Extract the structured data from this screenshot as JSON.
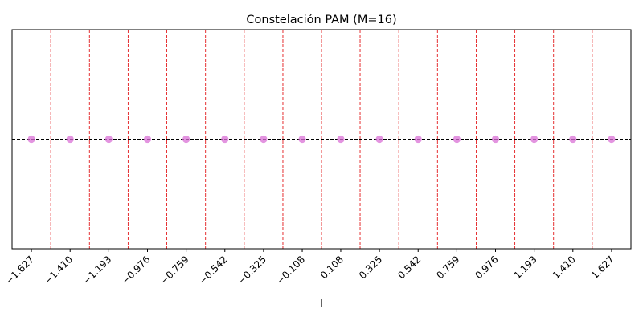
{
  "chart_data": {
    "type": "scatter",
    "title": "Constelación PAM (M=16)",
    "xlabel": "I",
    "ylabel": "",
    "xlim": [
      -1.7355,
      1.7355
    ],
    "ylim": [
      -1,
      1
    ],
    "grid": false,
    "legend": "none",
    "x": [
      -1.627,
      -1.41,
      -1.193,
      -0.976,
      -0.759,
      -0.542,
      -0.325,
      -0.108,
      0.108,
      0.325,
      0.542,
      0.759,
      0.976,
      1.193,
      1.41,
      1.627
    ],
    "y": [
      0,
      0,
      0,
      0,
      0,
      0,
      0,
      0,
      0,
      0,
      0,
      0,
      0,
      0,
      0,
      0
    ],
    "xtick_values": [
      -1.627,
      -1.41,
      -1.193,
      -0.976,
      -0.759,
      -0.542,
      -0.325,
      -0.108,
      0.108,
      0.325,
      0.542,
      0.759,
      0.976,
      1.193,
      1.41,
      1.627
    ],
    "xtick_labels": [
      "−1.627",
      "−1.410",
      "−1.193",
      "−0.976",
      "−0.759",
      "−0.542",
      "−0.325",
      "−0.108",
      "0.108",
      "0.325",
      "0.542",
      "0.759",
      "0.976",
      "1.193",
      "1.410",
      "1.627"
    ],
    "decision_boundaries": [
      -1.5185,
      -1.3015,
      -1.0845,
      -0.8675,
      -0.6505,
      -0.4335,
      -0.2165,
      0.0,
      0.2165,
      0.4335,
      0.6505,
      0.8675,
      1.0845,
      1.3015,
      1.5185
    ],
    "reference_line_y": 0,
    "colors": {
      "points": "#da70d6",
      "boundaries": "#e31a1c",
      "reference_line": "#000000"
    }
  }
}
